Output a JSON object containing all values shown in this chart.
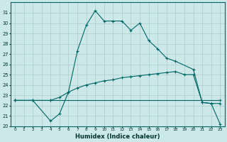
{
  "xlabel": "Humidex (Indice chaleur)",
  "background_color": "#cce8e8",
  "grid_color": "#aacccc",
  "line_color": "#006666",
  "xlim": [
    -0.5,
    23.5
  ],
  "ylim": [
    20,
    32
  ],
  "yticks": [
    20,
    21,
    22,
    23,
    24,
    25,
    26,
    27,
    28,
    29,
    30,
    31
  ],
  "xticks": [
    0,
    1,
    2,
    3,
    4,
    5,
    6,
    7,
    8,
    9,
    10,
    11,
    12,
    13,
    14,
    15,
    16,
    17,
    18,
    19,
    20,
    21,
    22,
    23
  ],
  "line1_x": [
    0,
    2,
    4,
    5,
    6,
    7,
    8,
    9,
    10,
    11,
    12,
    13,
    14,
    15,
    16,
    17,
    18,
    20,
    21,
    22,
    23
  ],
  "line1_y": [
    22.5,
    22.5,
    20.5,
    21.2,
    23.3,
    27.3,
    29.8,
    31.2,
    30.2,
    30.2,
    30.2,
    29.3,
    30.0,
    28.3,
    27.5,
    26.6,
    26.3,
    25.5,
    22.3,
    22.2,
    20.2
  ],
  "line2_x": [
    0,
    2,
    4,
    5,
    6,
    7,
    8,
    9,
    10,
    11,
    12,
    13,
    14,
    15,
    16,
    17,
    18,
    19,
    20,
    21,
    22,
    23
  ],
  "line2_y": [
    22.5,
    22.5,
    22.5,
    22.8,
    23.3,
    23.7,
    24.0,
    24.2,
    24.4,
    24.5,
    24.7,
    24.8,
    24.9,
    25.0,
    25.1,
    25.2,
    25.3,
    25.0,
    25.0,
    22.3,
    22.2,
    22.2
  ],
  "line3_x": [
    0,
    2,
    4,
    23
  ],
  "line3_y": [
    22.5,
    22.5,
    22.5,
    22.5
  ]
}
